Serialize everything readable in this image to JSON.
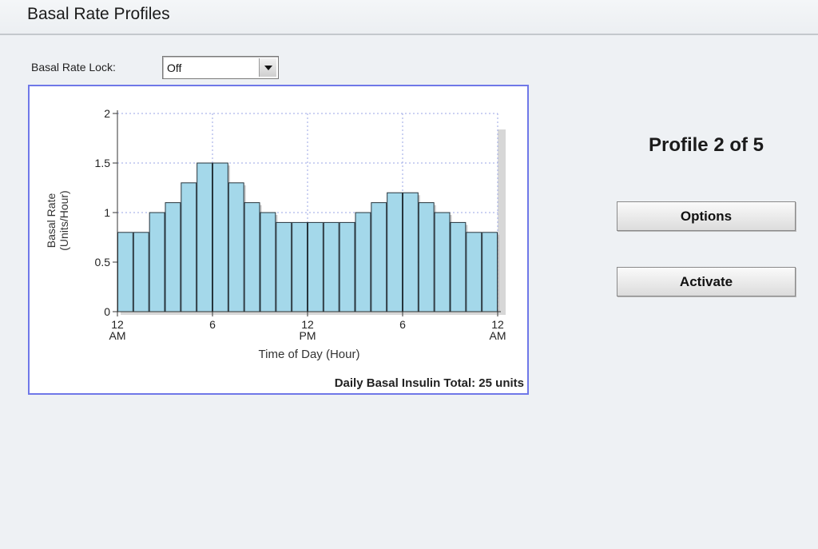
{
  "page": {
    "title": "Basal Rate Profiles"
  },
  "lock": {
    "label": "Basal Rate Lock:",
    "value": "Off"
  },
  "profile": {
    "label": "Profile 2 of 5"
  },
  "buttons": {
    "options": "Options",
    "activate": "Activate"
  },
  "colors": {
    "bar_fill": "#a4d8ea",
    "bar_stroke": "#26343c",
    "chart_border": "#6f78e8"
  },
  "chart_data": {
    "type": "bar",
    "xlabel": "Time of Day (Hour)",
    "ylabel_line1": "Basal Rate",
    "ylabel_line2": "(Units/Hour)",
    "ylim": [
      0,
      2
    ],
    "yticks": [
      "0",
      "0.5",
      "1",
      "1.5",
      "2"
    ],
    "xticks": [
      {
        "hour": 0,
        "line1": "12",
        "line2": "AM"
      },
      {
        "hour": 6,
        "line1": "6",
        "line2": ""
      },
      {
        "hour": 12,
        "line1": "12",
        "line2": "PM"
      },
      {
        "hour": 18,
        "line1": "6",
        "line2": ""
      },
      {
        "hour": 24,
        "line1": "12",
        "line2": "AM"
      }
    ],
    "grid": true,
    "hours": [
      0,
      1,
      2,
      3,
      4,
      5,
      6,
      7,
      8,
      9,
      10,
      11,
      12,
      13,
      14,
      15,
      16,
      17,
      18,
      19,
      20,
      21,
      22,
      23
    ],
    "values": [
      0.8,
      0.8,
      1.0,
      1.1,
      1.3,
      1.5,
      1.5,
      1.3,
      1.1,
      1.0,
      0.9,
      0.9,
      0.9,
      0.9,
      0.9,
      1.0,
      1.1,
      1.2,
      1.2,
      1.1,
      1.0,
      0.9,
      0.8,
      0.8
    ],
    "footer": "Daily Basal Insulin Total: 25 units"
  }
}
